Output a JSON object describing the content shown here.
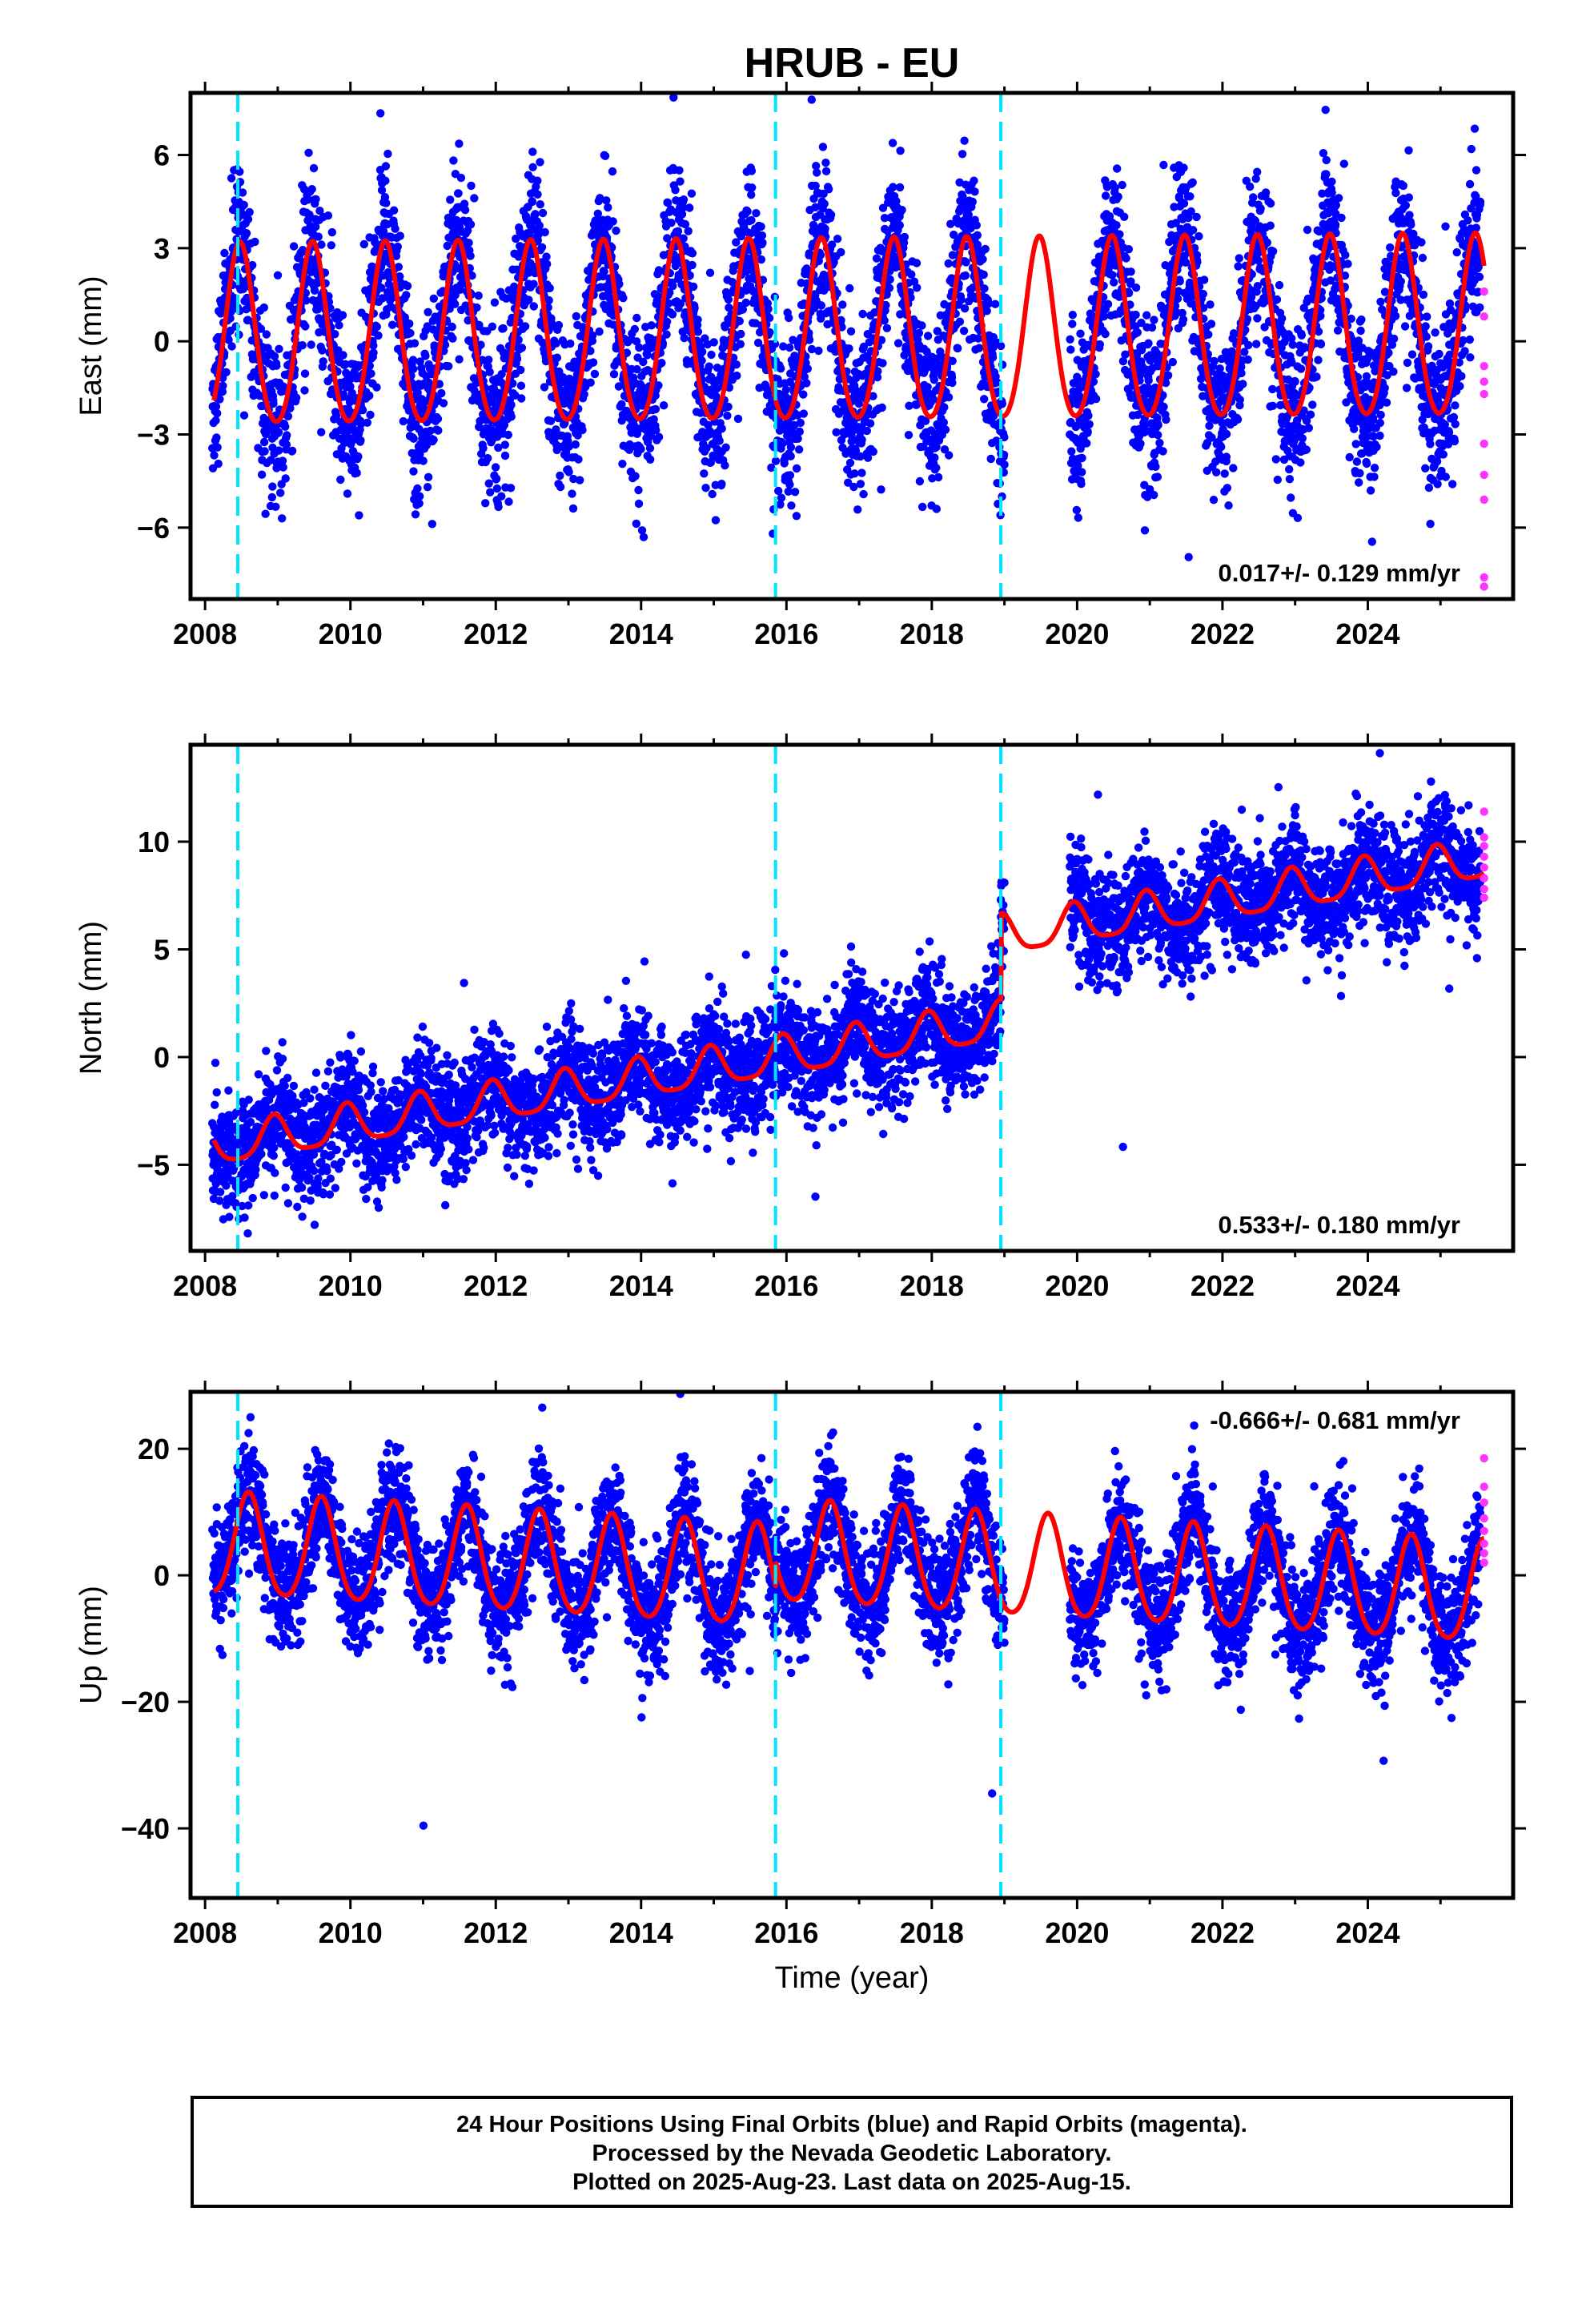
{
  "title": "HRUB - EU",
  "colors": {
    "final_orbits": "#0000ff",
    "rapid_orbits": "#ff33ff",
    "model": "#ff0000",
    "event_lines": "#00e5ff",
    "frame": "#000000"
  },
  "caption": {
    "line1": "24 Hour Positions Using Final Orbits (blue) and Rapid Orbits (magenta).",
    "line2": "Processed by the Nevada Geodetic Laboratory.",
    "line3": "Plotted on 2025-Aug-23. Last data on 2025-Aug-15."
  },
  "chart_data": [
    {
      "type": "scatter",
      "name": "east",
      "ylabel": "East (mm)",
      "xlabel": "",
      "xlim": [
        2007.8,
        2026.0
      ],
      "ylim": [
        -8.3,
        8.0
      ],
      "xticks": [
        2008,
        2010,
        2012,
        2014,
        2016,
        2018,
        2020,
        2022,
        2024
      ],
      "yticks": [
        -6,
        -3,
        0,
        3,
        6
      ],
      "yticklabels": [
        "−6",
        "−3",
        "0",
        "3",
        "6"
      ],
      "rate_label": "0.017+/- 0.129 mm/yr",
      "rate_position": "bottom-right",
      "event_lines": [
        2008.45,
        2015.85,
        2018.95
      ],
      "data_gap": [
        2019.0,
        2019.9
      ],
      "model": {
        "trend": 0.017,
        "offset": 0.0,
        "annual_amp": 2.9,
        "annual_peak": 2008.48,
        "semiannual_amp": 0.3,
        "step_at": 2018.95,
        "step": 0.0
      },
      "series": [
        {
          "name": "final",
          "x_range": [
            2008.1,
            2025.55
          ],
          "noise": 1.3
        },
        {
          "name": "rapid",
          "x": [
            2025.6,
            2025.6,
            2025.6,
            2025.6,
            2025.6,
            2025.6,
            2025.6,
            2025.6,
            2025.6,
            2025.6
          ],
          "y": [
            1.6,
            0.8,
            -0.8,
            -1.3,
            -1.7,
            -3.3,
            -4.3,
            -5.1,
            -7.6,
            -7.9
          ]
        }
      ]
    },
    {
      "type": "scatter",
      "name": "north",
      "ylabel": "North (mm)",
      "xlabel": "",
      "xlim": [
        2007.8,
        2026.0
      ],
      "ylim": [
        -9.0,
        14.5
      ],
      "xticks": [
        2008,
        2010,
        2012,
        2014,
        2016,
        2018,
        2020,
        2022,
        2024
      ],
      "yticks": [
        -5,
        0,
        5,
        10
      ],
      "yticklabels": [
        "−5",
        "0",
        "5",
        "10"
      ],
      "rate_label": "0.533+/- 0.180 mm/yr",
      "rate_position": "bottom-right",
      "event_lines": [
        2008.45,
        2015.85,
        2018.95
      ],
      "data_gap": [
        2019.0,
        2019.9
      ],
      "model": {
        "trend": 0.533,
        "offset": -4.2,
        "annual_amp": 0.9,
        "annual_peak": 2008.95,
        "semiannual_amp": 0.2,
        "step_at": 2018.95,
        "step": 4.0
      },
      "series": [
        {
          "name": "final",
          "x_range": [
            2008.1,
            2025.55
          ],
          "noise": 1.3
        },
        {
          "name": "rapid",
          "x": [
            2025.6,
            2025.6,
            2025.6,
            2025.6,
            2025.6,
            2025.6,
            2025.6,
            2025.6
          ],
          "y": [
            11.4,
            10.2,
            9.8,
            9.3,
            8.8,
            8.3,
            7.8,
            7.4
          ]
        }
      ]
    },
    {
      "type": "scatter",
      "name": "up",
      "ylabel": "Up (mm)",
      "xlabel": "Time (year)",
      "xlim": [
        2007.8,
        2026.0
      ],
      "ylim": [
        -51,
        29
      ],
      "xticks": [
        2008,
        2010,
        2012,
        2014,
        2016,
        2018,
        2020,
        2022,
        2024
      ],
      "yticks": [
        -40,
        -20,
        0,
        20
      ],
      "yticklabels": [
        "−40",
        "−20",
        "0",
        "20"
      ],
      "rate_label": "-0.666+/- 0.681 mm/yr",
      "rate_position": "top-right",
      "event_lines": [
        2008.45,
        2015.85,
        2018.95
      ],
      "data_gap": [
        2019.0,
        2019.9
      ],
      "model": {
        "trend": -0.666,
        "offset": 4.5,
        "annual_amp": 8.0,
        "annual_peak": 2008.6,
        "semiannual_amp": 1.0,
        "step_at": 2015.85,
        "step": 4.0
      },
      "series": [
        {
          "name": "final",
          "x_range": [
            2008.1,
            2025.55
          ],
          "noise": 4.6
        },
        {
          "name": "rapid",
          "x": [
            2025.6,
            2025.6,
            2025.6,
            2025.6,
            2025.6,
            2025.6,
            2025.6,
            2025.6
          ],
          "y": [
            18.5,
            14.0,
            11.5,
            9.0,
            7.0,
            5.0,
            3.5,
            2.0
          ]
        }
      ]
    }
  ]
}
